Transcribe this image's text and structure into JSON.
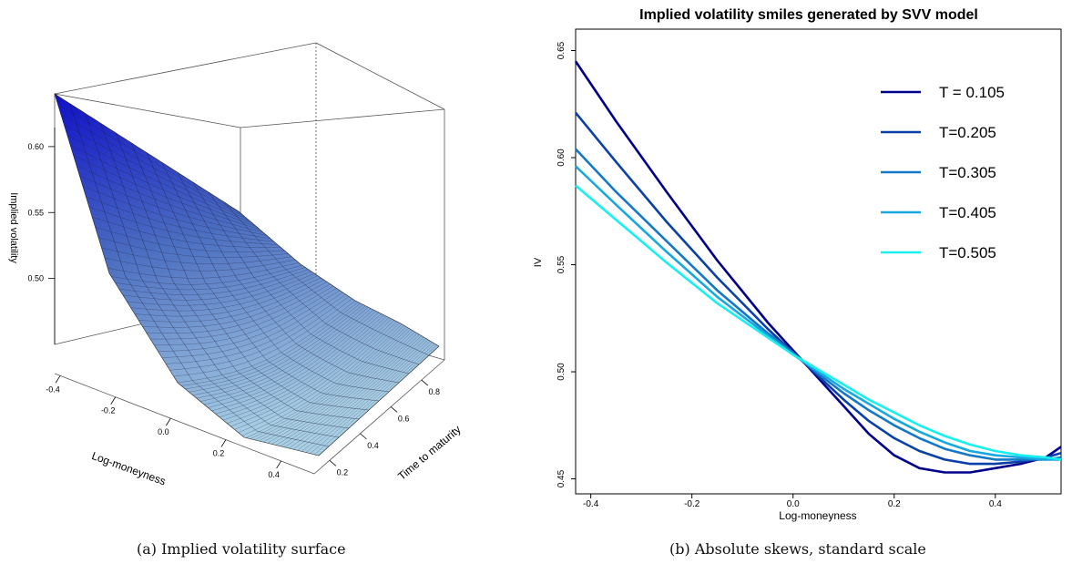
{
  "captions": {
    "a": "(a) Implied volatility surface",
    "b": "(b) Absolute skews, standard scale"
  },
  "chart_data": [
    {
      "type": "surface",
      "title": "",
      "xlabel": "Log-moneyness",
      "ylabel": "Time to maturity",
      "zlabel": "Implied volatility",
      "x_ticks": [
        "-0.4",
        "-0.2",
        "0.0",
        "0.2",
        "0.4"
      ],
      "y_ticks": [
        "0.2",
        "0.4",
        "0.6",
        "0.8"
      ],
      "z_ticks": [
        "0.50",
        "0.55",
        "0.60"
      ],
      "xlim": [
        -0.42,
        0.52
      ],
      "ylim": [
        0.1,
        0.95
      ],
      "zlim": [
        0.45,
        0.64
      ],
      "surface_color_top": "#1010c8",
      "surface_color_bottom": "#a8cfe4"
    },
    {
      "type": "line",
      "title": "Implied volatility smiles generated by SVV model",
      "xlabel": "Log-moneyness",
      "ylabel": "IV",
      "xlim": [
        -0.43,
        0.53
      ],
      "ylim": [
        0.443,
        0.66
      ],
      "x_ticks": [
        "-0.4",
        "-0.2",
        "0.0",
        "0.2",
        "0.4"
      ],
      "y_ticks": [
        "0.45",
        "0.50",
        "0.55",
        "0.60",
        "0.65"
      ],
      "legend_position": "top-right",
      "x": [
        -0.43,
        -0.35,
        -0.25,
        -0.15,
        -0.05,
        0.0,
        0.05,
        0.1,
        0.15,
        0.2,
        0.25,
        0.3,
        0.35,
        0.4,
        0.45,
        0.5,
        0.53
      ],
      "series": [
        {
          "name": "T = 0.105",
          "color": "#00008b",
          "values": [
            0.645,
            0.617,
            0.584,
            0.552,
            0.523,
            0.51,
            0.497,
            0.484,
            0.471,
            0.461,
            0.455,
            0.453,
            0.453,
            0.455,
            0.457,
            0.46,
            0.465
          ]
        },
        {
          "name": "T=0.205",
          "color": "#0a40a8",
          "values": [
            0.621,
            0.598,
            0.57,
            0.544,
            0.52,
            0.509,
            0.498,
            0.487,
            0.477,
            0.469,
            0.463,
            0.459,
            0.457,
            0.457,
            0.458,
            0.46,
            0.462
          ]
        },
        {
          "name": "T=0.305",
          "color": "#1478c8",
          "values": [
            0.604,
            0.584,
            0.561,
            0.538,
            0.518,
            0.509,
            0.499,
            0.49,
            0.482,
            0.475,
            0.469,
            0.464,
            0.461,
            0.459,
            0.459,
            0.459,
            0.46
          ]
        },
        {
          "name": "T=0.405",
          "color": "#18a8e0",
          "values": [
            0.596,
            0.578,
            0.556,
            0.535,
            0.517,
            0.508,
            0.5,
            0.492,
            0.485,
            0.478,
            0.472,
            0.467,
            0.463,
            0.461,
            0.46,
            0.459,
            0.459
          ]
        },
        {
          "name": "T=0.505",
          "color": "#18f0f0",
          "values": [
            0.587,
            0.571,
            0.551,
            0.532,
            0.516,
            0.508,
            0.501,
            0.494,
            0.487,
            0.481,
            0.475,
            0.47,
            0.466,
            0.463,
            0.461,
            0.46,
            0.459
          ]
        }
      ]
    }
  ]
}
